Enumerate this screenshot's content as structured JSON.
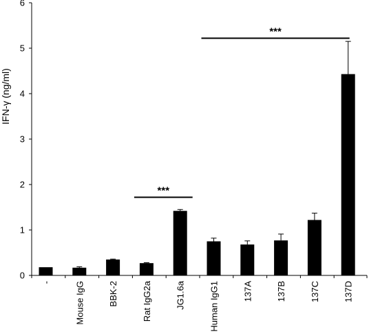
{
  "chart_data": {
    "type": "bar",
    "title": "",
    "xlabel": "",
    "ylabel": "IFN-γ (ng/ml)",
    "ylim": [
      0,
      6
    ],
    "yticks": [
      "0",
      "1",
      "2",
      "3",
      "4",
      "5",
      "6"
    ],
    "grid": false,
    "categories": [
      "-",
      "Mouse IgG",
      "BBK-2",
      "Rat IgG2a",
      "JG1.6a",
      "Human IgG1",
      "137A",
      "137B",
      "137C",
      "137D"
    ],
    "values": [
      0.18,
      0.17,
      0.35,
      0.27,
      1.42,
      0.75,
      0.68,
      0.77,
      1.22,
      4.43
    ],
    "errors": [
      0.0,
      0.02,
      0.01,
      0.01,
      0.03,
      0.07,
      0.08,
      0.14,
      0.15,
      0.72
    ],
    "color": "#000000",
    "annotations": [
      {
        "label": "***",
        "from_category": 3,
        "to_category": 4,
        "y": 1.72
      },
      {
        "label": "***",
        "from_category": 5,
        "to_category": 9,
        "y": 5.22
      }
    ]
  }
}
